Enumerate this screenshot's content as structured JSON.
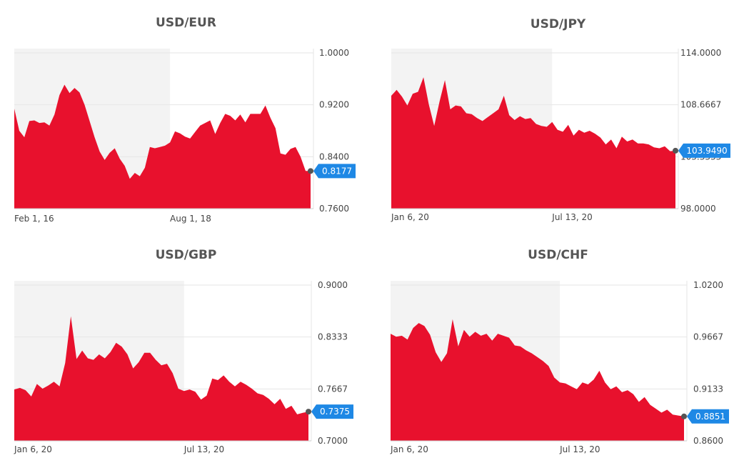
{
  "colors": {
    "area": "#e8112d",
    "shade": "#f3f3f3",
    "grid": "#e6e6e6",
    "badge": "#1e88e5",
    "dot": "#555555"
  },
  "chart_data": [
    {
      "type": "area",
      "title": "USD/EUR",
      "y_ticks": [
        "1.0000",
        "0.9200",
        "0.8400",
        "0.7600"
      ],
      "ylim": [
        0.76,
        1.0
      ],
      "x_ticks": [
        {
          "label": "Feb 1, 16",
          "index": 0
        },
        {
          "label": "Aug 1, 18",
          "index": 31
        }
      ],
      "shaded_until_index": 31,
      "current_value": "0.8177",
      "values": [
        0.914,
        0.88,
        0.87,
        0.895,
        0.896,
        0.892,
        0.893,
        0.888,
        0.905,
        0.935,
        0.951,
        0.938,
        0.946,
        0.939,
        0.92,
        0.895,
        0.87,
        0.848,
        0.835,
        0.846,
        0.853,
        0.837,
        0.826,
        0.806,
        0.815,
        0.81,
        0.823,
        0.855,
        0.853,
        0.855,
        0.857,
        0.862,
        0.879,
        0.876,
        0.871,
        0.868,
        0.878,
        0.888,
        0.892,
        0.896,
        0.875,
        0.892,
        0.906,
        0.903,
        0.896,
        0.905,
        0.893,
        0.906,
        0.906,
        0.906,
        0.919,
        0.9,
        0.884,
        0.845,
        0.843,
        0.852,
        0.855,
        0.84,
        0.818,
        0.818
      ]
    },
    {
      "type": "area",
      "title": "USD/JPY",
      "y_ticks": [
        "114.0000",
        "108.6667",
        "103.3333",
        "98.0000"
      ],
      "ylim": [
        98.0,
        114.0
      ],
      "x_ticks": [
        {
          "label": "Jan 6, 20",
          "index": 0
        },
        {
          "label": "Jul 13, 20",
          "index": 30
        }
      ],
      "shaded_until_index": 30,
      "current_value": "103.9490",
      "values": [
        109.6,
        110.2,
        109.5,
        108.6,
        109.8,
        110.0,
        111.5,
        108.7,
        106.5,
        109.0,
        111.2,
        108.2,
        108.6,
        108.5,
        107.8,
        107.7,
        107.3,
        107.0,
        107.4,
        107.8,
        108.2,
        109.6,
        107.6,
        107.1,
        107.5,
        107.2,
        107.3,
        106.7,
        106.5,
        106.4,
        106.9,
        106.1,
        105.9,
        106.6,
        105.5,
        106.1,
        105.8,
        106.0,
        105.7,
        105.3,
        104.6,
        105.1,
        104.2,
        105.4,
        104.9,
        105.1,
        104.7,
        104.7,
        104.6,
        104.3,
        104.2,
        104.4,
        103.9,
        103.95
      ]
    },
    {
      "type": "area",
      "title": "USD/GBP",
      "y_ticks": [
        "0.9000",
        "0.8333",
        "0.7667",
        "0.7000"
      ],
      "ylim": [
        0.7,
        0.9
      ],
      "x_ticks": [
        {
          "label": "Jan 6, 20",
          "index": 0
        },
        {
          "label": "Jul 13, 20",
          "index": 30
        }
      ],
      "shaded_until_index": 30,
      "current_value": "0.7375",
      "values": [
        0.766,
        0.768,
        0.765,
        0.757,
        0.773,
        0.767,
        0.771,
        0.776,
        0.77,
        0.8,
        0.86,
        0.805,
        0.816,
        0.806,
        0.804,
        0.811,
        0.806,
        0.814,
        0.826,
        0.821,
        0.811,
        0.793,
        0.801,
        0.813,
        0.813,
        0.804,
        0.797,
        0.799,
        0.787,
        0.767,
        0.764,
        0.766,
        0.763,
        0.753,
        0.758,
        0.78,
        0.778,
        0.784,
        0.776,
        0.77,
        0.776,
        0.772,
        0.767,
        0.761,
        0.759,
        0.754,
        0.747,
        0.754,
        0.741,
        0.745,
        0.734,
        0.736,
        0.7375
      ]
    },
    {
      "type": "area",
      "title": "USD/CHF",
      "y_ticks": [
        "1.0200",
        "0.9667",
        "0.9133",
        "0.8600"
      ],
      "ylim": [
        0.86,
        1.02
      ],
      "x_ticks": [
        {
          "label": "Jan 6, 20",
          "index": 0
        },
        {
          "label": "Jul 13, 20",
          "index": 30
        }
      ],
      "shaded_until_index": 30,
      "current_value": "0.8851",
      "values": [
        0.97,
        0.967,
        0.968,
        0.964,
        0.976,
        0.981,
        0.978,
        0.969,
        0.951,
        0.941,
        0.95,
        0.985,
        0.957,
        0.974,
        0.967,
        0.972,
        0.968,
        0.97,
        0.963,
        0.97,
        0.968,
        0.966,
        0.958,
        0.957,
        0.953,
        0.95,
        0.946,
        0.942,
        0.937,
        0.925,
        0.92,
        0.919,
        0.916,
        0.913,
        0.92,
        0.918,
        0.923,
        0.932,
        0.92,
        0.913,
        0.916,
        0.91,
        0.912,
        0.908,
        0.9,
        0.905,
        0.897,
        0.893,
        0.889,
        0.892,
        0.887,
        0.886,
        0.8851
      ]
    }
  ]
}
